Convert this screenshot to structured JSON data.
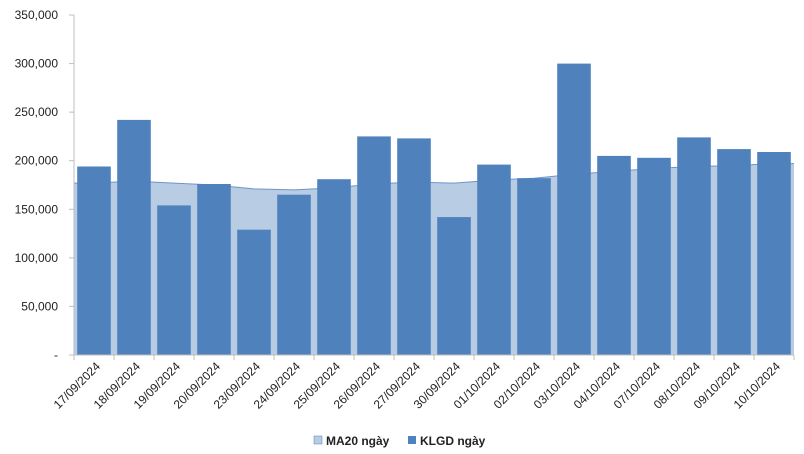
{
  "chart_data": {
    "type": "bar",
    "categories": [
      "17/09/2024",
      "18/09/2024",
      "19/09/2024",
      "20/09/2024",
      "23/09/2024",
      "24/09/2024",
      "25/09/2024",
      "26/09/2024",
      "27/09/2024",
      "30/09/2024",
      "01/10/2024",
      "02/10/2024",
      "03/10/2024",
      "04/10/2024",
      "07/10/2024",
      "08/10/2024",
      "09/10/2024",
      "10/10/2024"
    ],
    "series": [
      {
        "name": "MA20 ngày",
        "type": "area",
        "color": "#b8cce4",
        "values": [
          177000,
          179000,
          177000,
          175000,
          171000,
          170000,
          172000,
          176000,
          178000,
          177000,
          180000,
          182000,
          186000,
          189000,
          192000,
          194000,
          195000,
          197000
        ]
      },
      {
        "name": "KLGD ngày",
        "type": "bar",
        "color": "#4f81bd",
        "values": [
          194000,
          242000,
          154000,
          176000,
          129000,
          165000,
          181000,
          225000,
          223000,
          142000,
          196000,
          182000,
          300000,
          205000,
          203000,
          224000,
          212000,
          209000
        ]
      }
    ],
    "yticks": [
      "-",
      "50,000",
      "100,000",
      "150,000",
      "200,000",
      "250,000",
      "300,000",
      "350,000"
    ],
    "ylim": [
      0,
      350000
    ],
    "xlabel": "",
    "ylabel": "",
    "title": "",
    "grid": false,
    "legend": "bottom-center"
  }
}
